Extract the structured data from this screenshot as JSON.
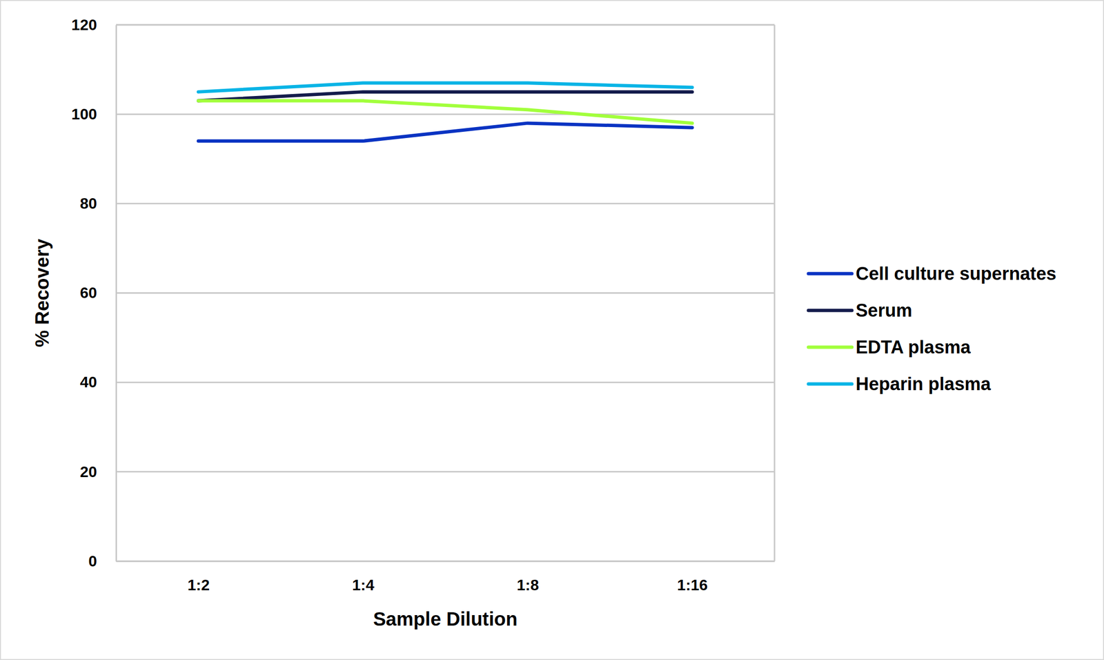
{
  "chart_data": {
    "type": "line",
    "x_label": "Sample Dilution",
    "y_label": "% Recovery",
    "categories": [
      "1:2",
      "1:4",
      "1:8",
      "1:16"
    ],
    "series": [
      {
        "name": "Cell culture supernates",
        "color": "#0a33c2",
        "values": [
          94,
          94,
          98,
          97
        ]
      },
      {
        "name": "Serum",
        "color": "#141c4c",
        "values": [
          103,
          105,
          105,
          105
        ]
      },
      {
        "name": "EDTA plasma",
        "color": "#a2ff3c",
        "values": [
          103,
          103,
          101,
          98
        ]
      },
      {
        "name": "Heparin plasma",
        "color": "#0ab4e6",
        "values": [
          105,
          107,
          107,
          106
        ]
      }
    ],
    "ylim": [
      0,
      120
    ],
    "yticks": [
      0,
      20,
      40,
      60,
      80,
      100,
      120
    ],
    "grid": true,
    "legend": "right"
  }
}
